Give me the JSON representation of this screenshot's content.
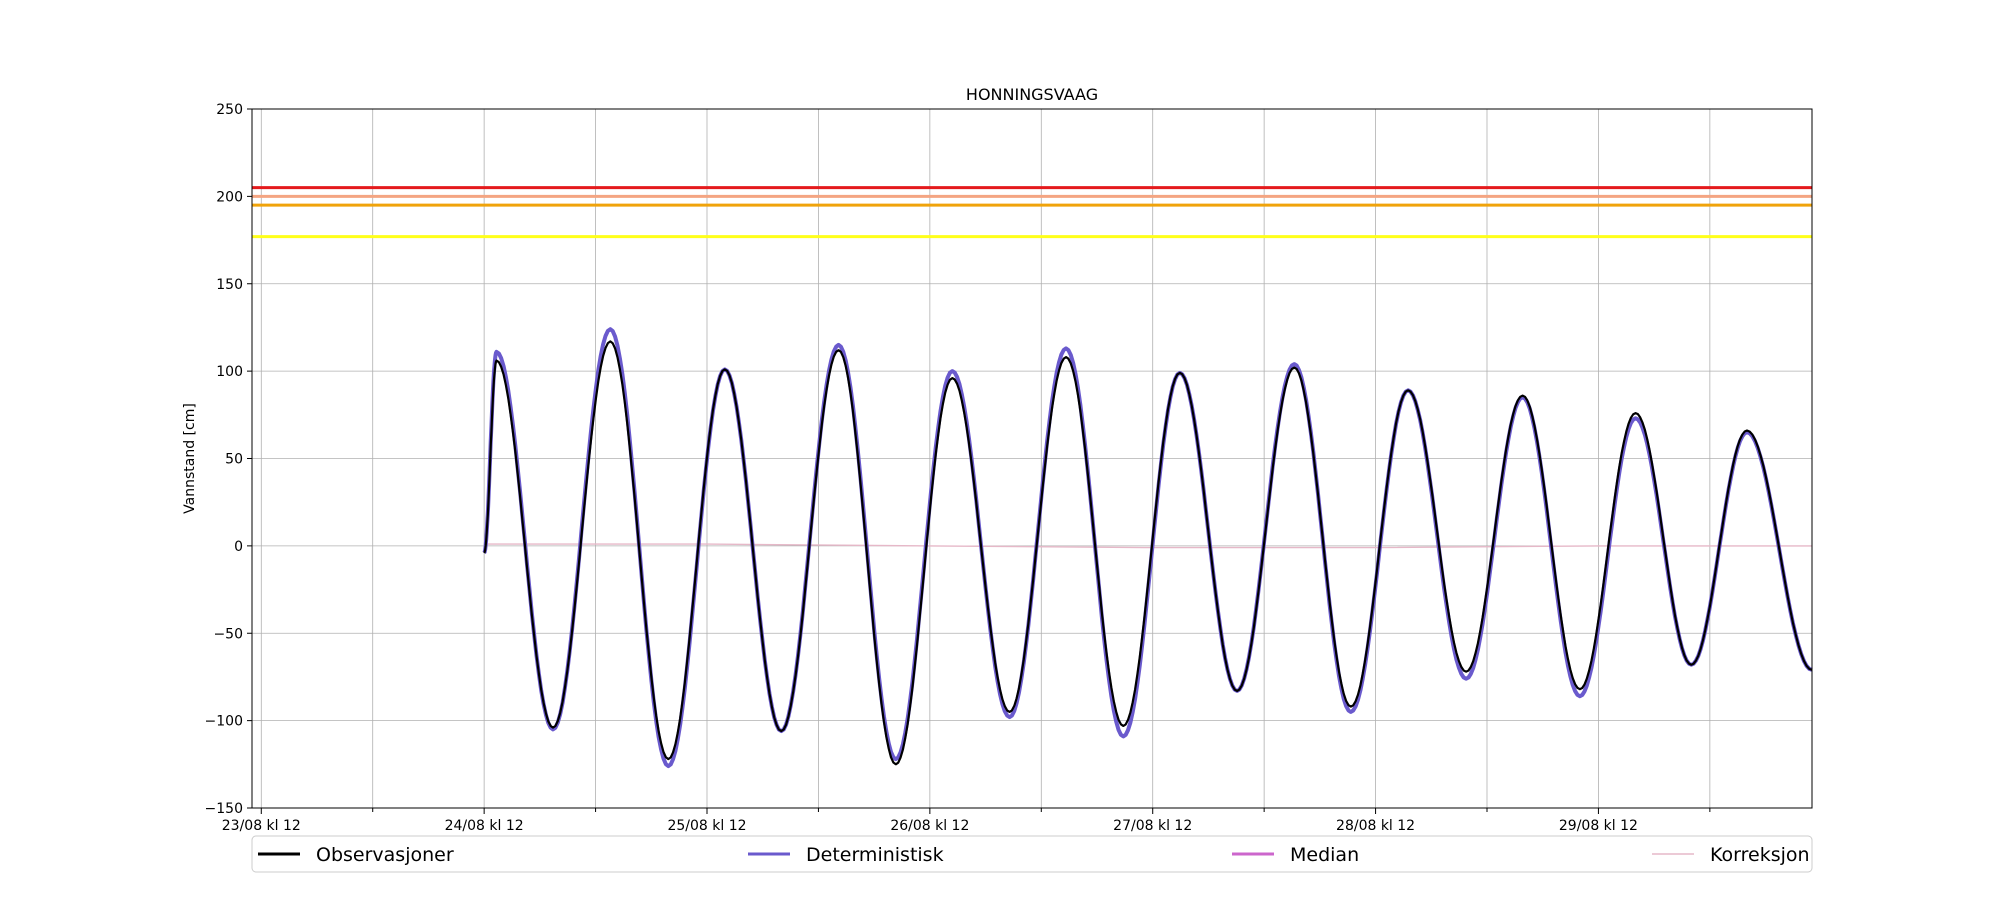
{
  "chart_data": {
    "type": "line",
    "title": "HONNINGSVAAG",
    "xlabel": "",
    "ylabel": "Vannstand [cm]",
    "ylim": [
      -150,
      250
    ],
    "yticks": [
      -150,
      -100,
      -50,
      0,
      50,
      100,
      150,
      200,
      250
    ],
    "xlim": [
      "2021-08-23T11:00",
      "2021-08-30T11:00"
    ],
    "xtick_labels": [
      "23/08 kl 12",
      "24/08 kl 12",
      "25/08 kl 12",
      "26/08 kl 12",
      "27/08 kl 12",
      "28/08 kl 12",
      "29/08 kl 12"
    ],
    "xtick_dates": [
      "2021-08-23T12:00",
      "2021-08-24T12:00",
      "2021-08-25T12:00",
      "2021-08-26T12:00",
      "2021-08-27T12:00",
      "2021-08-28T12:00",
      "2021-08-29T12:00"
    ],
    "grid": true,
    "legend_position": "bottom",
    "thresholds": [
      {
        "value": 205,
        "color": "#e41a1c"
      },
      {
        "value": 200,
        "color": "#f4a582"
      },
      {
        "value": 195,
        "color": "#f0a30a"
      },
      {
        "value": 177,
        "color": "#ffff1a"
      }
    ],
    "series": [
      {
        "name": "Observasjoner",
        "color": "#000000",
        "extrema": [
          [
            "2021-08-24T12:00",
            -4
          ],
          [
            "2021-08-24T13:20",
            106
          ],
          [
            "2021-08-24T19:25",
            -104
          ],
          [
            "2021-08-25T01:35",
            117
          ],
          [
            "2021-08-25T07:50",
            -122
          ],
          [
            "2021-08-25T13:55",
            101
          ],
          [
            "2021-08-25T20:00",
            -106
          ],
          [
            "2021-08-26T02:10",
            112
          ],
          [
            "2021-08-26T08:20",
            -125
          ],
          [
            "2021-08-26T14:25",
            96
          ],
          [
            "2021-08-26T20:35",
            -95
          ],
          [
            "2021-08-27T02:40",
            108
          ],
          [
            "2021-08-27T08:50",
            -103
          ],
          [
            "2021-08-27T14:55",
            99
          ],
          [
            "2021-08-27T21:05",
            -83
          ],
          [
            "2021-08-28T03:15",
            102
          ],
          [
            "2021-08-28T09:20",
            -92
          ],
          [
            "2021-08-28T15:30",
            89
          ],
          [
            "2021-08-28T21:45",
            -72
          ],
          [
            "2021-08-29T03:50",
            86
          ],
          [
            "2021-08-29T10:00",
            -82
          ],
          [
            "2021-08-29T16:00",
            76
          ],
          [
            "2021-08-29T22:00",
            -68
          ],
          [
            "2021-08-30T04:00",
            66
          ],
          [
            "2021-08-30T11:00",
            -71
          ]
        ]
      },
      {
        "name": "Deterministisk",
        "color": "#6a5acd",
        "extrema": [
          [
            "2021-08-24T12:00",
            -4
          ],
          [
            "2021-08-24T13:20",
            111
          ],
          [
            "2021-08-24T19:25",
            -105
          ],
          [
            "2021-08-25T01:35",
            124
          ],
          [
            "2021-08-25T07:50",
            -126
          ],
          [
            "2021-08-25T13:55",
            101
          ],
          [
            "2021-08-25T20:00",
            -106
          ],
          [
            "2021-08-26T02:10",
            115
          ],
          [
            "2021-08-26T08:20",
            -122
          ],
          [
            "2021-08-26T14:25",
            100
          ],
          [
            "2021-08-26T20:35",
            -98
          ],
          [
            "2021-08-27T02:40",
            113
          ],
          [
            "2021-08-27T08:50",
            -109
          ],
          [
            "2021-08-27T14:55",
            99
          ],
          [
            "2021-08-27T21:05",
            -83
          ],
          [
            "2021-08-28T03:15",
            104
          ],
          [
            "2021-08-28T09:20",
            -95
          ],
          [
            "2021-08-28T15:30",
            89
          ],
          [
            "2021-08-28T21:45",
            -76
          ],
          [
            "2021-08-29T03:50",
            85
          ],
          [
            "2021-08-29T10:00",
            -86
          ],
          [
            "2021-08-29T16:00",
            73
          ],
          [
            "2021-08-29T22:00",
            -68
          ],
          [
            "2021-08-30T04:00",
            65
          ],
          [
            "2021-08-30T11:00",
            -71
          ]
        ]
      },
      {
        "name": "Median",
        "color": "#cc66cc",
        "extrema": []
      },
      {
        "name": "Korreksjon",
        "color": "#e6b8c8",
        "points": [
          [
            "2021-08-24T12:00",
            1
          ],
          [
            "2021-08-25T12:00",
            1
          ],
          [
            "2021-08-26T12:00",
            0
          ],
          [
            "2021-08-27T12:00",
            -1
          ],
          [
            "2021-08-28T12:00",
            -1
          ],
          [
            "2021-08-29T12:00",
            0
          ],
          [
            "2021-08-30T11:00",
            0
          ]
        ]
      }
    ]
  }
}
